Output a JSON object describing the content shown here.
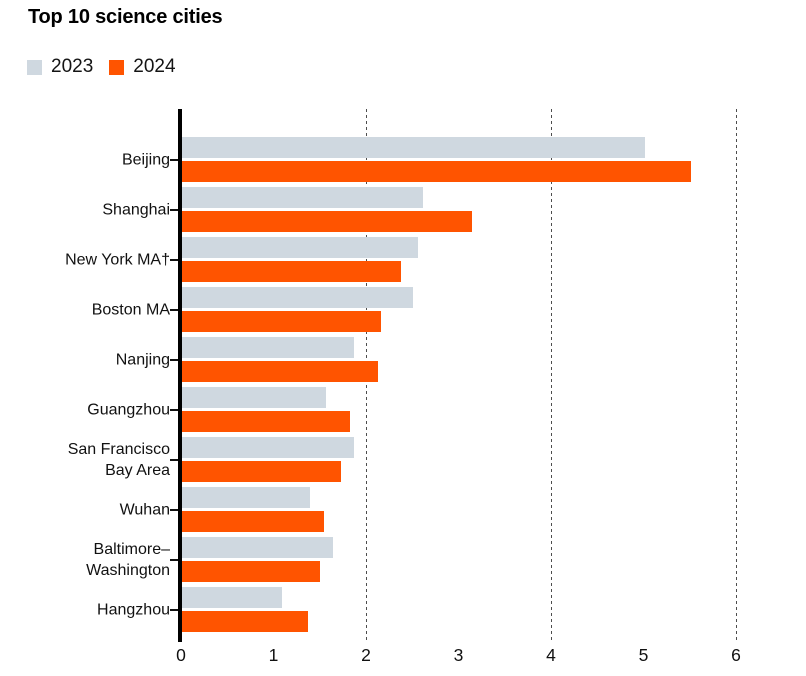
{
  "header": {
    "title": "Top 10 science cities"
  },
  "legend": {
    "items": [
      {
        "label": "2023",
        "color": "#cfd8e0"
      },
      {
        "label": "2024",
        "color": "#ff5400"
      }
    ]
  },
  "axis": {
    "x_tick_labels": [
      "0",
      "1",
      "2",
      "3",
      "4",
      "5",
      "6"
    ]
  },
  "chart_data": {
    "type": "bar",
    "orientation": "horizontal",
    "title": "Top 10 science cities",
    "categories": [
      "Beijing",
      "Shanghai",
      "New York MA†",
      "Boston MA",
      "Nanjing",
      "Guangzhou",
      "San Francisco Bay Area",
      "Wuhan",
      "Baltimore–Washington",
      "Hangzhou"
    ],
    "label_lines": [
      [
        "Beijing"
      ],
      [
        "Shanghai"
      ],
      [
        "New York MA†"
      ],
      [
        "Boston MA"
      ],
      [
        "Nanjing"
      ],
      [
        "Guangzhou"
      ],
      [
        "San Francisco",
        "Bay Area"
      ],
      [
        "Wuhan"
      ],
      [
        "Baltimore–",
        "Washington"
      ],
      [
        "Hangzhou"
      ]
    ],
    "series": [
      {
        "name": "2023",
        "color": "#cfd8e0",
        "values": [
          5.0,
          2.61,
          2.55,
          2.5,
          1.86,
          1.56,
          1.86,
          1.38,
          1.63,
          1.08
        ]
      },
      {
        "name": "2024",
        "color": "#ff5400",
        "values": [
          5.5,
          3.14,
          2.37,
          2.15,
          2.12,
          1.82,
          1.72,
          1.53,
          1.49,
          1.36
        ]
      }
    ],
    "xlim": [
      0,
      6.4
    ],
    "x_ticks": [
      0,
      1,
      2,
      3,
      4,
      5,
      6
    ],
    "gridlines_at": [
      2,
      4,
      6
    ],
    "grid": "vertical dotted",
    "legend_position": "top-left",
    "axis_color": "#000000",
    "text_color": "#111111"
  }
}
